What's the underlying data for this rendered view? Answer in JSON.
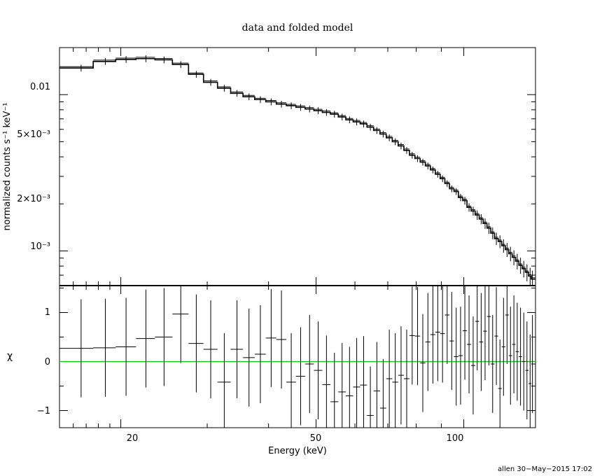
{
  "chart_data": [
    {
      "type": "line",
      "title": "data and folded model",
      "xlabel": "Energy (keV)",
      "ylabel": "normalized counts s⁻¹ keV⁻¹",
      "xscale": "log",
      "yscale": "log",
      "xlim": [
        15,
        140
      ],
      "ylim": [
        0.0006,
        0.02
      ],
      "y_tick_labels": [
        "0.01",
        "5×10⁻³",
        "2×10⁻³",
        "10⁻³"
      ],
      "series": [
        {
          "x": [
            16.6,
            18.6,
            20.5,
            22.5,
            24.5,
            26.5,
            28.5,
            30.5,
            32.5,
            34.5,
            36.5,
            38.5,
            40.5,
            42.5,
            44.5,
            46.5,
            48.5,
            50.5,
            52.5,
            54.5,
            56.5,
            58.5,
            60.5,
            62.5,
            64.5,
            66.5,
            68.5,
            70.5,
            72.5,
            74.5,
            76.5,
            78.5,
            80.5,
            82.5,
            84.5,
            86.5,
            88.5,
            90.5,
            92.5,
            94.5,
            96.5,
            98.5,
            100.5,
            102.5,
            104.5,
            106.5,
            108.5,
            110.5,
            112.5,
            114.5,
            116.5,
            118.5,
            120.5,
            122.5,
            124.5,
            126.5,
            128.5,
            130.5,
            132.5,
            134.5,
            136.5,
            138.0
          ],
          "y": [
            0.0148,
            0.0163,
            0.0168,
            0.017,
            0.0167,
            0.0156,
            0.0135,
            0.012,
            0.011,
            0.0102,
            0.0097,
            0.0093,
            0.009,
            0.0087,
            0.0085,
            0.0083,
            0.0081,
            0.0079,
            0.0077,
            0.0075,
            0.0072,
            0.0069,
            0.0067,
            0.0065,
            0.0062,
            0.0059,
            0.0056,
            0.0053,
            0.005,
            0.0047,
            0.0044,
            0.0041,
            0.0039,
            0.0037,
            0.0035,
            0.0033,
            0.0031,
            0.0029,
            0.0027,
            0.0025,
            0.0024,
            0.0022,
            0.0021,
            0.0019,
            0.0018,
            0.0017,
            0.0016,
            0.0015,
            0.0014,
            0.0013,
            0.0012,
            0.00115,
            0.00108,
            0.00102,
            0.00096,
            0.00091,
            0.00086,
            0.00081,
            0.00077,
            0.00073,
            0.00069,
            0.00066
          ]
        }
      ]
    },
    {
      "type": "scatter",
      "ylabel": "χ",
      "xlabel": "Energy (keV)",
      "xscale": "log",
      "xlim": [
        15,
        140
      ],
      "ylim": [
        -1.35,
        1.55
      ],
      "x_tick_labels": [
        "20",
        "50",
        "100"
      ],
      "y_tick_labels": [
        "1",
        "0",
        "−1"
      ],
      "series": [
        {
          "x": [
            16.6,
            18.6,
            20.5,
            22.5,
            24.5,
            26.5,
            28.5,
            30.5,
            32.5,
            34.5,
            36.5,
            38.5,
            40.5,
            42.5,
            44.5,
            46.5,
            48.5,
            50.5,
            52.5,
            54.5,
            56.5,
            58.5,
            60.5,
            62.5,
            64.5,
            66.5,
            68.5,
            70.5,
            72.5,
            74.5,
            76.5,
            78.5,
            80.5,
            82.5,
            84.5,
            86.5,
            88.5,
            90.5,
            92.5,
            94.5,
            96.5,
            98.5,
            100.5,
            102.5,
            104.5,
            106.5,
            108.5,
            110.5,
            112.5,
            114.5,
            116.5,
            118.5,
            120.5,
            122.5,
            124.5,
            126.5,
            128.5,
            130.5,
            132.5,
            134.5,
            136.5,
            138.0
          ],
          "y": [
            0.27,
            0.28,
            0.3,
            0.47,
            0.5,
            0.97,
            0.37,
            0.25,
            -0.42,
            0.25,
            0.08,
            0.15,
            0.48,
            0.45,
            -0.42,
            -0.3,
            -0.05,
            -0.18,
            -0.47,
            -0.82,
            -0.62,
            -0.7,
            -0.52,
            -0.48,
            -1.1,
            -0.6,
            -0.95,
            -0.35,
            -0.42,
            -0.28,
            -0.35,
            0.53,
            0.52,
            -0.03,
            0.4,
            0.55,
            0.6,
            0.57,
            0.95,
            0.42,
            0.1,
            0.12,
            0.63,
            0.35,
            -0.08,
            0.82,
            0.4,
            0.62,
            0.92,
            -0.05,
            0.52,
            -0.55,
            0.3,
            0.95,
            0.12,
            0.35,
            0.2,
            0.1,
            0.0,
            -0.18,
            -0.45,
            -0.05
          ],
          "err": [
            1.0,
            1.0,
            1.0,
            1.0,
            1.0,
            1.0,
            1.0,
            1.0,
            1.0,
            1.0,
            1.0,
            1.0,
            1.0,
            1.0,
            1.0,
            1.0,
            1.0,
            1.0,
            1.0,
            1.0,
            1.0,
            1.0,
            1.0,
            1.0,
            1.0,
            1.0,
            1.0,
            1.0,
            1.0,
            1.0,
            1.0,
            1.0,
            1.0,
            1.0,
            1.0,
            1.0,
            1.0,
            1.0,
            1.0,
            1.0,
            1.0,
            1.0,
            1.0,
            1.0,
            1.0,
            1.0,
            1.0,
            1.0,
            1.0,
            1.0,
            1.0,
            1.0,
            1.0,
            1.0,
            1.0,
            1.0,
            1.0,
            1.0,
            1.0,
            1.0,
            1.0,
            1.0
          ]
        }
      ],
      "reference_line": {
        "y": 0,
        "color": "#00cc00"
      }
    }
  ],
  "footer": "allen 30−May−2015 17:02"
}
